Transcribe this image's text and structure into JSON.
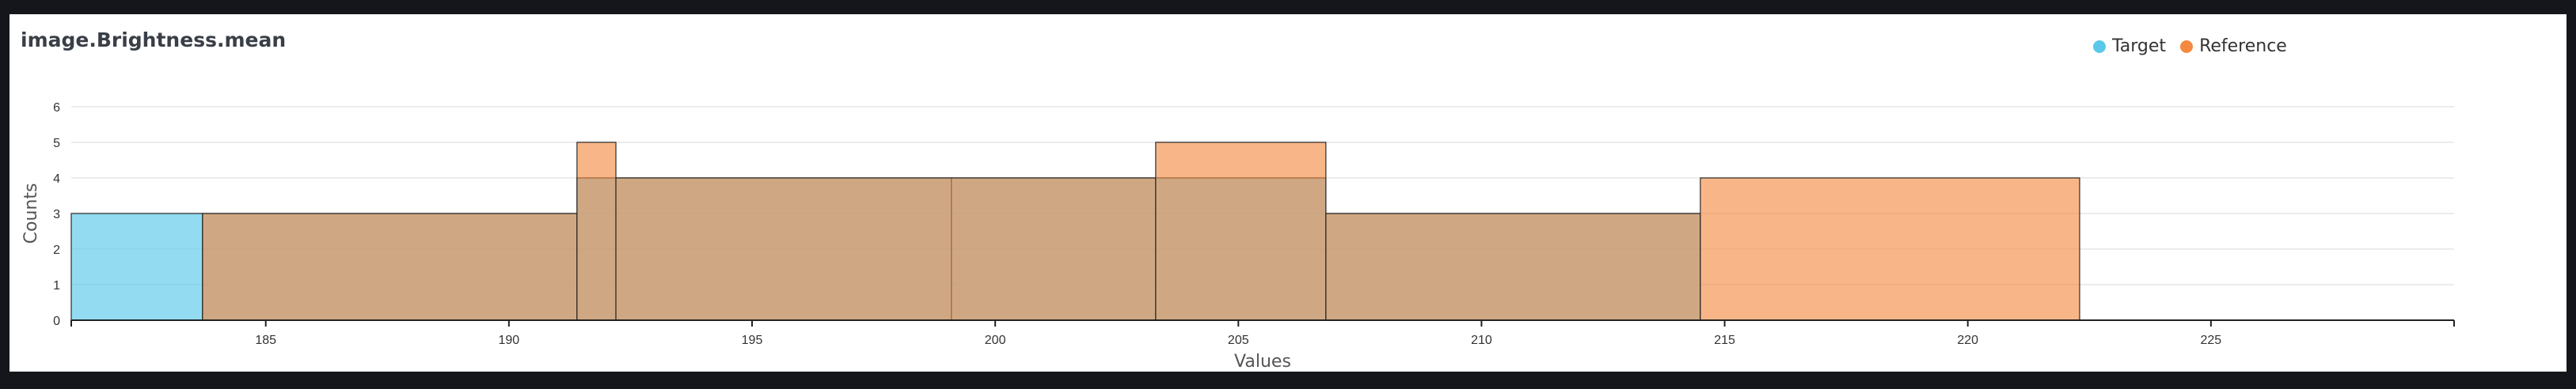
{
  "chart_data": {
    "type": "histogram",
    "title": "image.Brightness.mean",
    "xlabel": "Values",
    "ylabel": "Counts",
    "xlim": [
      181,
      230
    ],
    "ylim": [
      0,
      6
    ],
    "x_ticks": [
      185,
      190,
      195,
      200,
      205,
      210,
      215,
      220,
      225
    ],
    "y_ticks": [
      0,
      1,
      2,
      3,
      4,
      5,
      6
    ],
    "grid": true,
    "legend_position": "top-right",
    "series": [
      {
        "name": "Target",
        "color": "#5bc8ea",
        "bins": [
          {
            "x0": 181.0,
            "x1": 183.7,
            "count": 3
          },
          {
            "x0": 183.7,
            "x1": 191.4,
            "count": 3
          },
          {
            "x0": 191.4,
            "x1": 199.1,
            "count": 4
          },
          {
            "x0": 199.1,
            "x1": 206.8,
            "count": 4
          },
          {
            "x0": 206.8,
            "x1": 214.5,
            "count": 3
          }
        ]
      },
      {
        "name": "Reference",
        "color": "#f4893f",
        "bins": [
          {
            "x0": 183.7,
            "x1": 191.4,
            "count": 3
          },
          {
            "x0": 191.4,
            "x1": 192.2,
            "count": 5
          },
          {
            "x0": 192.2,
            "x1": 203.3,
            "count": 4
          },
          {
            "x0": 203.3,
            "x1": 206.8,
            "count": 5
          },
          {
            "x0": 206.8,
            "x1": 214.5,
            "count": 3
          },
          {
            "x0": 214.5,
            "x1": 222.3,
            "count": 4
          }
        ]
      }
    ]
  }
}
